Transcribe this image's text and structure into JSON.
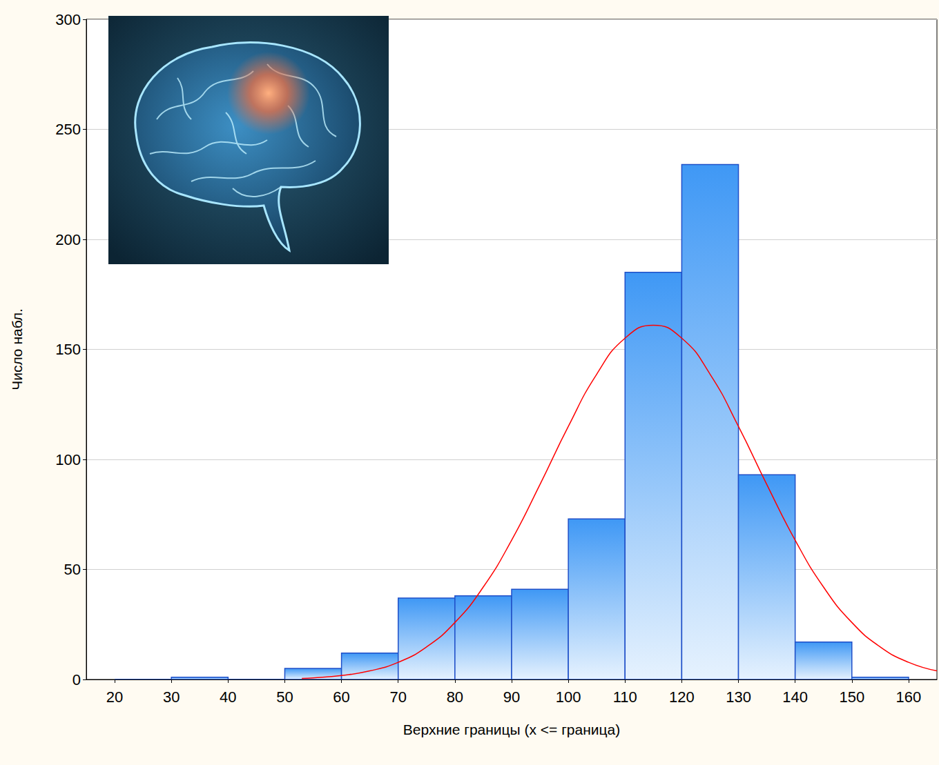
{
  "chart_data": {
    "type": "histogram",
    "xlabel": "Верхние границы (x <= граница)",
    "ylabel": "Число набл.",
    "bins": [
      20,
      30,
      40,
      50,
      60,
      70,
      80,
      90,
      100,
      110,
      120,
      130,
      140,
      150,
      160
    ],
    "series": [
      {
        "type": "bar",
        "color": "#3f98f5",
        "values": [
          0,
          1,
          0,
          5,
          12,
          37,
          38,
          41,
          73,
          185,
          234,
          93,
          17,
          1
        ]
      },
      {
        "type": "line",
        "color": "#ff0000",
        "line_style": "solid",
        "x": [
          53,
          55,
          60,
          65,
          70,
          75,
          80,
          85,
          90,
          95,
          100,
          105,
          110,
          115,
          120,
          125,
          130,
          135,
          140,
          145,
          150,
          155,
          160,
          165
        ],
        "values": [
          0.5,
          0.7,
          1.8,
          3.9,
          7.8,
          14.8,
          25.9,
          42,
          63.3,
          88.6,
          115,
          138.7,
          155.1,
          161,
          155.1,
          138.7,
          115,
          88.6,
          63.3,
          42,
          25.9,
          14.8,
          7.8,
          3.9
        ]
      }
    ],
    "xlim": [
      15,
      165
    ],
    "xticks": [
      20,
      30,
      40,
      50,
      60,
      70,
      80,
      90,
      100,
      110,
      120,
      130,
      140,
      150,
      160
    ],
    "ylim": [
      0,
      300
    ],
    "yticks": [
      0,
      50,
      100,
      150,
      200,
      250,
      300
    ],
    "grid": true
  }
}
